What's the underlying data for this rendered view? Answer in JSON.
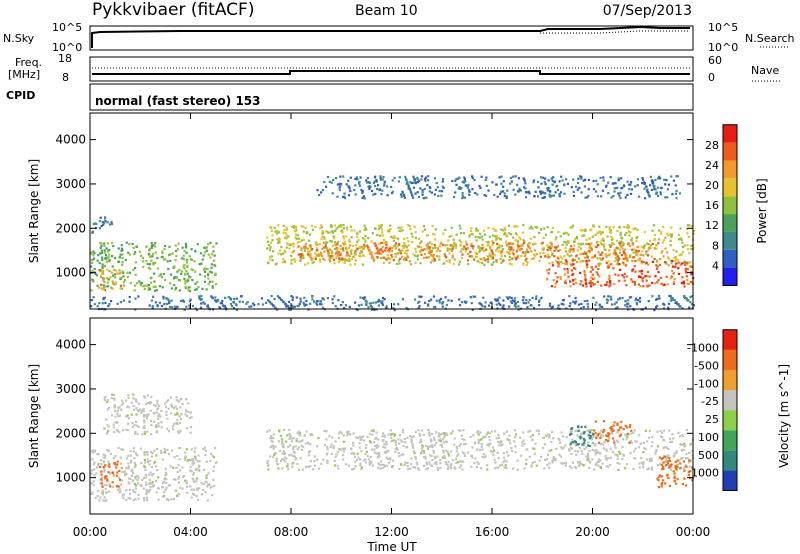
{
  "header": {
    "station": "Pykkvibaer (fitACF)",
    "beam": "Beam 10",
    "date": "07/Sep/2013"
  },
  "sky_panel": {
    "left_label": "N.Sky",
    "left_ticks": [
      "10^5",
      "10^0"
    ],
    "right_label": "N.Search",
    "right_ticks": [
      "10^5",
      "10^0"
    ]
  },
  "freq_panel": {
    "left_label_line1": "Freq.",
    "left_label_line2": "[MHz]",
    "left_ticks": [
      "18",
      "8"
    ],
    "right_label": "Nave",
    "right_ticks": [
      "60",
      "0"
    ]
  },
  "cpid_panel": {
    "label": "CPID",
    "mode_text": "normal (fast stereo) 153"
  },
  "chart_data": [
    {
      "type": "heatmap",
      "panel": "power",
      "ylabel": "Slant Range [km]",
      "xlabel": "",
      "ylim": [
        180,
        4600
      ],
      "yticks": [
        "1000",
        "2000",
        "3000",
        "4000"
      ],
      "xticks": [
        "00:00",
        "04:00",
        "08:00",
        "12:00",
        "16:00",
        "20:00",
        "00:00"
      ],
      "colorbar_label": "Power [dB]",
      "colorbar_ticks": [
        "4",
        "8",
        "12",
        "16",
        "20",
        "24",
        "28"
      ],
      "colorbar_colors": [
        "#1f1ff0",
        "#2f5ec4",
        "#3f8a8a",
        "#4aa35a",
        "#8fc23a",
        "#e8c22a",
        "#f39a2a",
        "#f05a1a",
        "#e81e10"
      ],
      "echo_regions": [
        {
          "name": "evening-echo",
          "t": [
            0.0,
            0.85
          ],
          "range": [
            1900,
            2300
          ],
          "power": 8
        },
        {
          "name": "early-lower",
          "t": [
            0.0,
            5.0
          ],
          "range": [
            600,
            1700
          ],
          "power": 14
        },
        {
          "name": "early-strong",
          "t": [
            0.3,
            1.2
          ],
          "range": [
            600,
            1100
          ],
          "power": 24
        },
        {
          "name": "band-main",
          "t": [
            7.0,
            24.0
          ],
          "range": [
            1200,
            2100
          ],
          "power": 18
        },
        {
          "name": "band-core",
          "t": [
            8.0,
            23.0
          ],
          "range": [
            1300,
            1700
          ],
          "power": 26
        },
        {
          "name": "far-range",
          "t": [
            9.0,
            23.5
          ],
          "range": [
            2700,
            3200
          ],
          "power": 6
        },
        {
          "name": "late-near",
          "t": [
            18.0,
            24.0
          ],
          "range": [
            700,
            1300
          ],
          "power": 28
        },
        {
          "name": "near-ground",
          "t": [
            0.0,
            24.0
          ],
          "range": [
            180,
            500
          ],
          "power": 6
        }
      ]
    },
    {
      "type": "heatmap",
      "panel": "velocity",
      "ylabel": "Slant Range [km]",
      "xlabel": "Time UT",
      "ylim": [
        180,
        4600
      ],
      "yticks": [
        "1000",
        "2000",
        "3000",
        "4000"
      ],
      "xticks": [
        "00:00",
        "04:00",
        "08:00",
        "12:00",
        "16:00",
        "20:00",
        "00:00"
      ],
      "colorbar_label": "Velocity [m s^-1]",
      "colorbar_ticks": [
        "1000",
        "500",
        "100",
        "25",
        "-25",
        "-100",
        "-500",
        "-1000"
      ],
      "colorbar_colors": [
        "#1f3fb4",
        "#2f8a7a",
        "#3fa65a",
        "#8fd04a",
        "#c4c4bc",
        "#f0a02a",
        "#f06a1a",
        "#e82010"
      ],
      "echo_regions": [
        {
          "name": "ground-scatter-main",
          "t": [
            7.0,
            24.0
          ],
          "range": [
            1200,
            2100
          ],
          "velocity": 0
        },
        {
          "name": "ground-scatter-early",
          "t": [
            0.0,
            5.0
          ],
          "range": [
            500,
            1700
          ],
          "velocity": 0
        },
        {
          "name": "ground-scatter-far",
          "t": [
            0.5,
            4.0
          ],
          "range": [
            2000,
            2900
          ],
          "velocity": 0
        },
        {
          "name": "early-negative",
          "t": [
            0.3,
            1.2
          ],
          "range": [
            800,
            1400
          ],
          "velocity": -500
        },
        {
          "name": "late-negative",
          "t": [
            20.0,
            21.5
          ],
          "range": [
            1800,
            2300
          ],
          "velocity": -300
        },
        {
          "name": "late-positive",
          "t": [
            19.0,
            20.0
          ],
          "range": [
            1700,
            2200
          ],
          "velocity": 300
        },
        {
          "name": "late-near-mixed",
          "t": [
            22.5,
            24.0
          ],
          "range": [
            800,
            1500
          ],
          "velocity": -500
        }
      ]
    }
  ]
}
